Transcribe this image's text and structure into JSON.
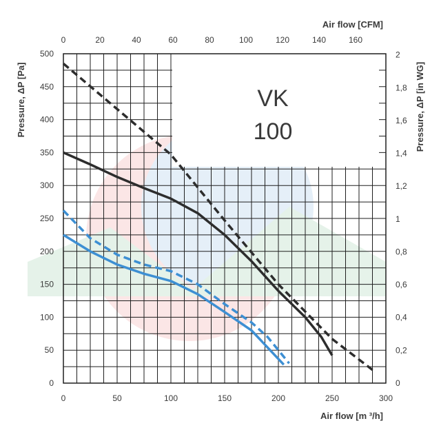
{
  "chart_data": {
    "type": "line",
    "title": "VK 100",
    "title_lines": [
      "VK",
      "100"
    ],
    "xlabel": "Air flow [m ³/h]",
    "x2label": "Air flow [CFM]",
    "ylabel": "Pressure, ΔP [Pa]",
    "y2label": "Pressure, ΔP [in WG]",
    "xlim": [
      0,
      300
    ],
    "ylim": [
      0,
      500
    ],
    "x2lim": [
      0,
      176.6
    ],
    "y2lim": [
      0,
      2.007
    ],
    "grid": true,
    "legend": "none",
    "x_ticks": [
      "0",
      "50",
      "100",
      "150",
      "200",
      "250",
      "300"
    ],
    "y_ticks": [
      "0",
      "50",
      "100",
      "150",
      "200",
      "250",
      "300",
      "350",
      "400",
      "450",
      "500"
    ],
    "x2_ticks": [
      "0",
      "20",
      "40",
      "60",
      "80",
      "100",
      "120",
      "140",
      "160"
    ],
    "y2_ticks": [
      "0",
      "0,2",
      "0,4",
      "0,6",
      "0,8",
      "1",
      "1,2",
      "1,4",
      "1,6",
      "1,8",
      "2"
    ],
    "series": [
      {
        "color": "#2d2d2d",
        "dash": false,
        "points": [
          [
            0,
            350
          ],
          [
            25,
            332
          ],
          [
            50,
            313
          ],
          [
            75,
            296
          ],
          [
            100,
            280
          ],
          [
            125,
            258
          ],
          [
            150,
            225
          ],
          [
            175,
            185
          ],
          [
            200,
            140
          ],
          [
            225,
            100
          ],
          [
            240,
            70
          ],
          [
            250,
            42
          ]
        ]
      },
      {
        "color": "#2d2d2d",
        "dash": true,
        "points": [
          [
            0,
            485
          ],
          [
            100,
            347
          ],
          [
            150,
            247
          ],
          [
            200,
            150
          ],
          [
            250,
            67
          ],
          [
            290,
            17
          ]
        ]
      },
      {
        "color": "#3d8fd3",
        "dash": false,
        "points": [
          [
            0,
            225
          ],
          [
            25,
            200
          ],
          [
            50,
            180
          ],
          [
            75,
            166
          ],
          [
            100,
            155
          ],
          [
            125,
            135
          ],
          [
            150,
            108
          ],
          [
            175,
            80
          ],
          [
            205,
            28
          ]
        ]
      },
      {
        "color": "#3d8fd3",
        "dash": true,
        "points": [
          [
            0,
            262
          ],
          [
            25,
            220
          ],
          [
            50,
            195
          ],
          [
            75,
            180
          ],
          [
            100,
            170
          ],
          [
            125,
            150
          ],
          [
            150,
            120
          ],
          [
            175,
            92
          ],
          [
            190,
            70
          ],
          [
            210,
            30
          ]
        ]
      }
    ]
  }
}
